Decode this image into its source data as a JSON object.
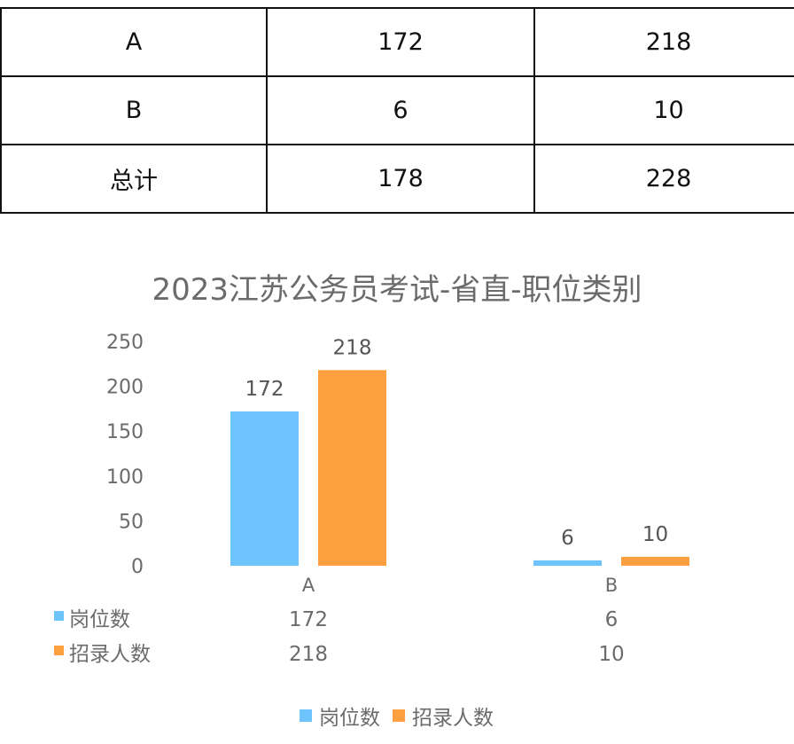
{
  "table": {
    "rows": [
      [
        "A",
        "172",
        "218"
      ],
      [
        "B",
        "6",
        "10"
      ],
      [
        "总计",
        "178",
        "228"
      ]
    ]
  },
  "chart_data": {
    "type": "bar",
    "title": "2023江苏公务员考试-省直-职位类别",
    "categories": [
      "A",
      "B"
    ],
    "series": [
      {
        "name": "岗位数",
        "values": [
          172,
          6
        ],
        "color": "#6dc3fb"
      },
      {
        "name": "招录人数",
        "values": [
          218,
          10
        ],
        "color": "#fea03f"
      }
    ],
    "ylim": [
      0,
      250
    ],
    "yticks": [
      0,
      50,
      100,
      150,
      200,
      250
    ],
    "grid": false,
    "legend": "bottom",
    "data_table": true
  }
}
